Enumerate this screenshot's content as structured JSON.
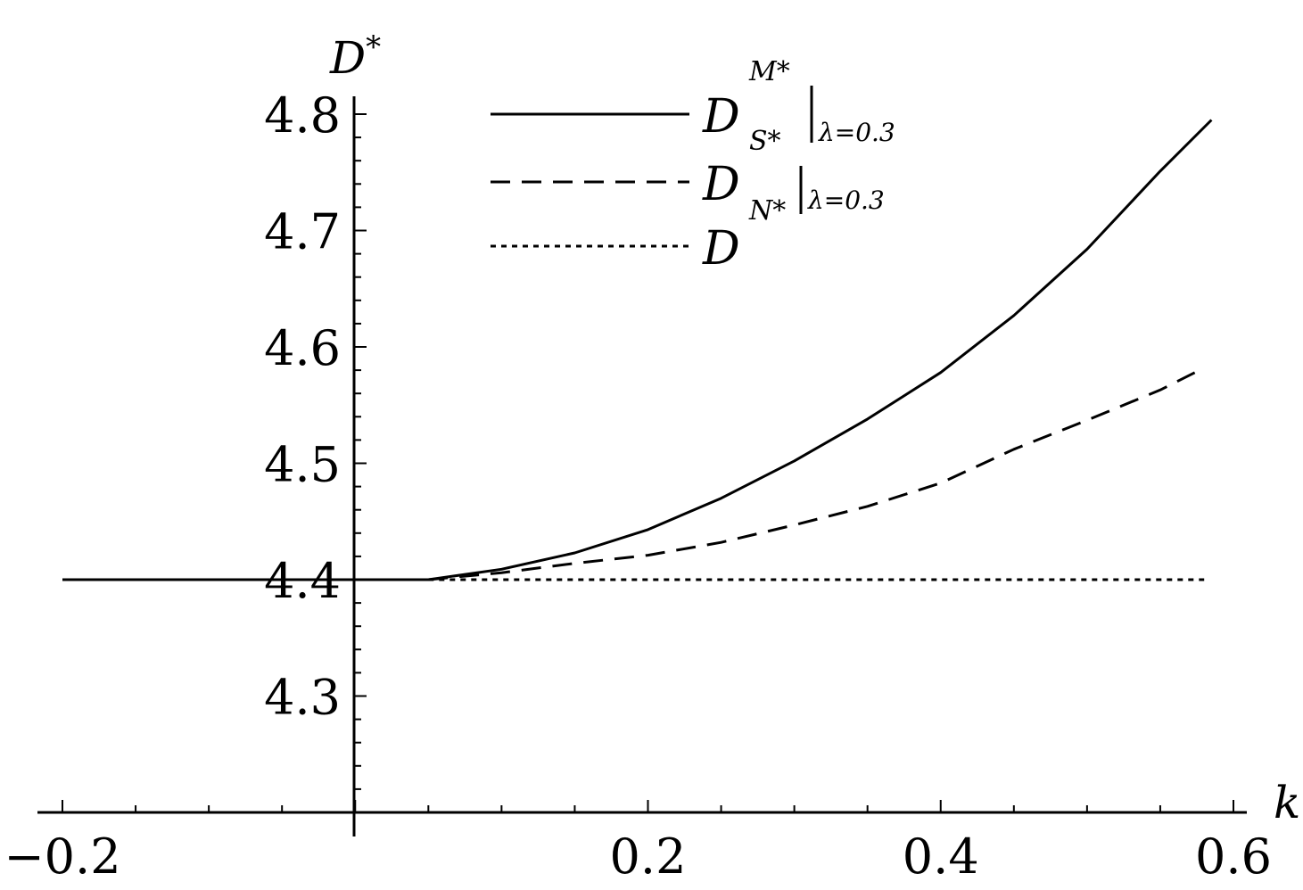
{
  "chart_data": {
    "type": "line",
    "title": "",
    "xlabel": "k",
    "ylabel": "D",
    "ylabel_sup": "*",
    "xlim": [
      -0.2,
      0.6
    ],
    "ylim": [
      4.2,
      4.8
    ],
    "x_ticks": [
      {
        "value": -0.2,
        "label": "−0.2"
      },
      {
        "value": 0.2,
        "label": "0.2"
      },
      {
        "value": 0.4,
        "label": "0.4"
      },
      {
        "value": 0.6,
        "label": "0.6"
      }
    ],
    "y_ticks": [
      {
        "value": 4.3,
        "label": "4.3"
      },
      {
        "value": 4.4,
        "label": "4.4"
      },
      {
        "value": 4.5,
        "label": "4.5"
      },
      {
        "value": 4.6,
        "label": "4.6"
      },
      {
        "value": 4.7,
        "label": "4.7"
      },
      {
        "value": 4.8,
        "label": "4.8"
      }
    ],
    "grid": false,
    "legend_position": "top-center",
    "series": [
      {
        "style": "solid",
        "legend": {
          "main": "D",
          "sup": "M*",
          "sub": "S*",
          "eval": "λ=0.3"
        },
        "x": [
          -0.2,
          0.05,
          0.1,
          0.15,
          0.2,
          0.25,
          0.3,
          0.35,
          0.4,
          0.45,
          0.5,
          0.55,
          0.585
        ],
        "y": [
          4.4,
          4.4,
          4.409,
          4.423,
          4.443,
          4.47,
          4.502,
          4.538,
          4.578,
          4.627,
          4.684,
          4.751,
          4.795
        ]
      },
      {
        "style": "dashed",
        "legend": {
          "main": "D",
          "sup": "",
          "sub": "N*",
          "eval": "λ=0.3"
        },
        "x": [
          0.05,
          0.1,
          0.15,
          0.2,
          0.25,
          0.3,
          0.35,
          0.4,
          0.45,
          0.5,
          0.55,
          0.58
        ],
        "y": [
          4.4,
          4.406,
          4.414,
          4.421,
          4.432,
          4.447,
          4.463,
          4.483,
          4.512,
          4.537,
          4.563,
          4.582
        ]
      },
      {
        "style": "dotted",
        "legend": {
          "main": "D",
          "sup": "",
          "sub": "",
          "eval": ""
        },
        "x": [
          0.05,
          0.58
        ],
        "y": [
          4.4,
          4.4
        ]
      }
    ]
  }
}
